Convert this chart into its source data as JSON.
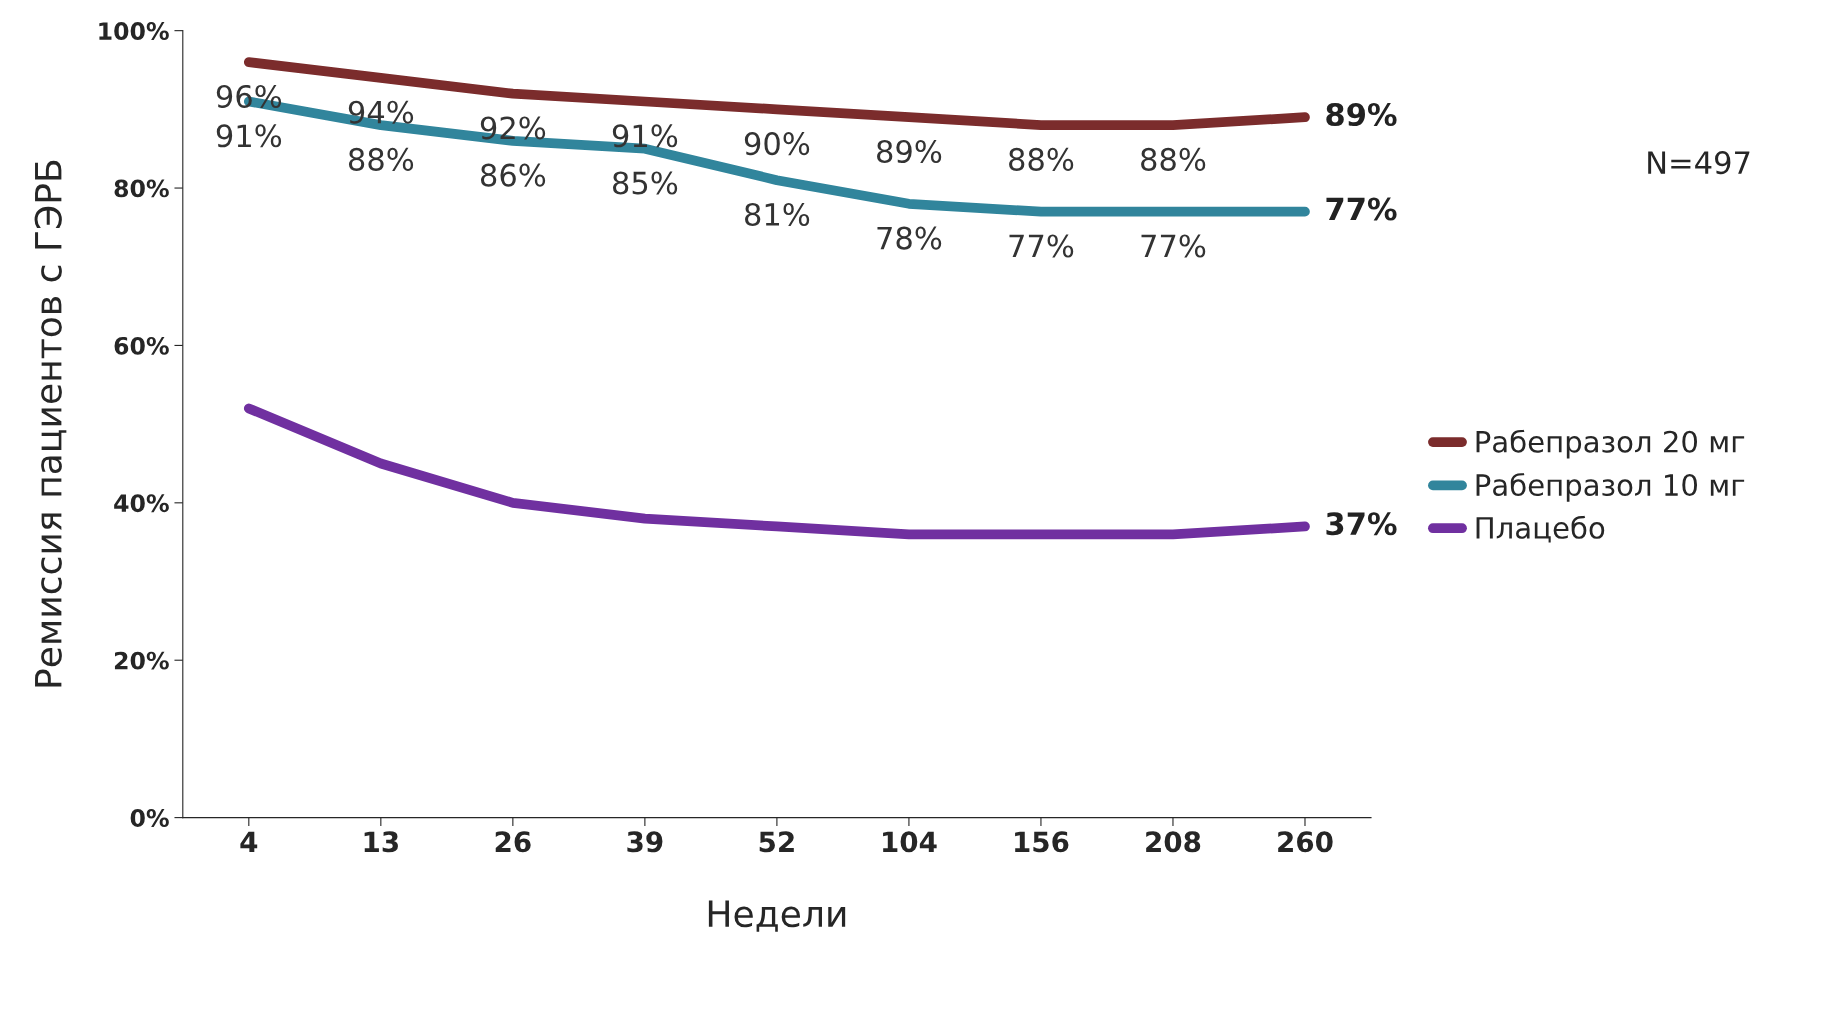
{
  "chart_data": {
    "type": "line",
    "xlabel": "Недели",
    "ylabel": "Ремиссия пациентов с ГЭРБ",
    "categories": [
      "4",
      "13",
      "26",
      "39",
      "52",
      "104",
      "156",
      "208",
      "260"
    ],
    "series": [
      {
        "name": "Рабепразол 20 мг",
        "color": "#7b2c2c",
        "values": [
          96,
          94,
          92,
          91,
          90,
          89,
          88,
          88,
          89
        ],
        "value_labels": [
          "96%",
          "94%",
          "92%",
          "91%",
          "90%",
          "89%",
          "88%",
          "88%",
          "89%"
        ]
      },
      {
        "name": "Рабепразол 10 мг",
        "color": "#31859c",
        "values": [
          91,
          88,
          86,
          85,
          81,
          78,
          77,
          77,
          77
        ],
        "value_labels": [
          "91%",
          "88%",
          "86%",
          "85%",
          "81%",
          "78%",
          "77%",
          "77%",
          "77%"
        ]
      },
      {
        "name": "Плацебо",
        "color": "#7030a0",
        "values": [
          52,
          45,
          40,
          38,
          37,
          36,
          36,
          36,
          37
        ],
        "value_labels": [
          null,
          null,
          null,
          null,
          null,
          null,
          null,
          null,
          "37%"
        ]
      }
    ],
    "ylim": [
      0,
      100
    ],
    "yticks": [
      {
        "value": 0,
        "label": "0%"
      },
      {
        "value": 20,
        "label": "20%"
      },
      {
        "value": 40,
        "label": "40%"
      },
      {
        "value": 60,
        "label": "60%"
      },
      {
        "value": 80,
        "label": "80%"
      },
      {
        "value": 100,
        "label": "100%"
      }
    ],
    "annotations": [
      "N=497"
    ],
    "legend": "right",
    "grid": false,
    "marker": "none",
    "line_style": "solid"
  }
}
